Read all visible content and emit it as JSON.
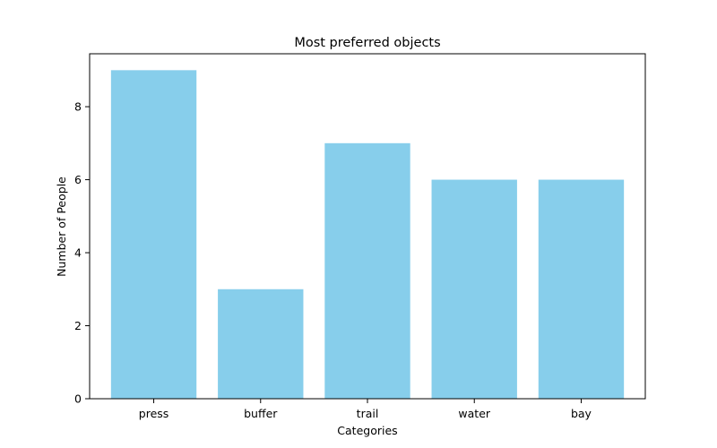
{
  "chart_data": {
    "type": "bar",
    "title": "Most preferred objects",
    "xlabel": "Categories",
    "ylabel": "Number of People",
    "categories": [
      "press",
      "buffer",
      "trail",
      "water",
      "bay"
    ],
    "values": [
      9,
      3,
      7,
      6,
      6
    ],
    "ylim": [
      0,
      9.45
    ],
    "yticks": [
      0,
      2,
      4,
      6,
      8
    ],
    "bar_color": "#87CEEB",
    "grid": false,
    "legend": "none"
  }
}
